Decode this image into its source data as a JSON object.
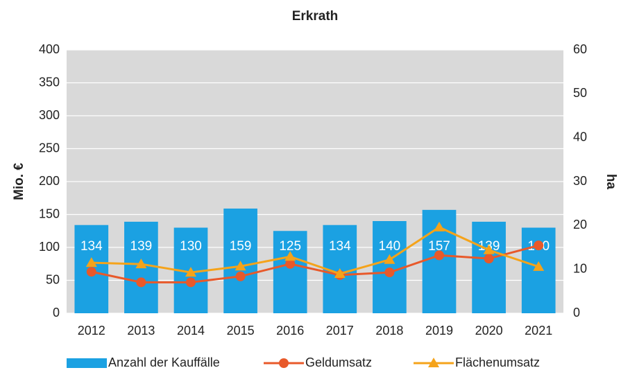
{
  "chart_data": {
    "type": "bar",
    "title": "Erkrath",
    "categories": [
      "2012",
      "2013",
      "2014",
      "2015",
      "2016",
      "2017",
      "2018",
      "2019",
      "2020",
      "2021"
    ],
    "y_label": "Mio. €",
    "y2_label": "ha",
    "ylim": [
      0,
      400
    ],
    "yticks": [
      0,
      50,
      100,
      150,
      200,
      250,
      300,
      350,
      400
    ],
    "y2lim": [
      0,
      60
    ],
    "y2ticks": [
      0,
      10,
      20,
      30,
      40,
      50,
      60
    ],
    "grid": true,
    "legend": "bottom",
    "series": [
      {
        "name": "Anzahl der Kauffälle",
        "type": "bar",
        "color": "#1ba1e2",
        "values": [
          134,
          139,
          130,
          159,
          125,
          134,
          140,
          157,
          139,
          130
        ]
      },
      {
        "name": "Geldumsatz",
        "type": "line",
        "marker": "circle",
        "color": "#e8592a",
        "values": [
          63,
          47,
          47,
          56,
          75,
          58,
          62,
          88,
          83,
          103
        ]
      },
      {
        "name": "Flächenumsatz",
        "type": "line",
        "marker": "triangle",
        "axis": "y2",
        "color": "#f5a31a",
        "values": [
          11.5,
          11.2,
          9.3,
          10.7,
          12.9,
          9,
          12.2,
          19.6,
          14.4,
          10.6
        ]
      }
    ]
  }
}
